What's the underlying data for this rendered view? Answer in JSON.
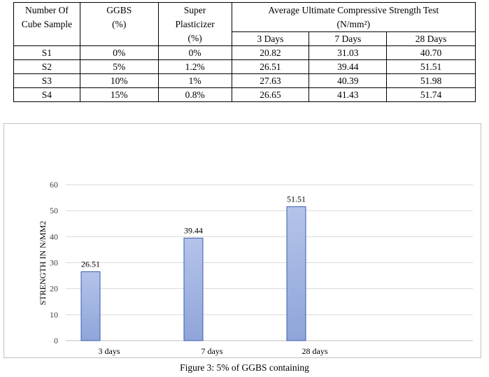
{
  "table": {
    "headers": {
      "col1": [
        "Number Of",
        "Cube Sample"
      ],
      "col2": [
        "GGBS",
        "(%)"
      ],
      "col3": [
        "Super",
        "Plasticizer",
        "(%)"
      ],
      "group_line1": "Average Ultimate Compressive Strength Test",
      "group_line2": "(N/mm²)",
      "days": [
        "3 Days",
        "7 Days",
        "28 Days"
      ]
    },
    "rows": [
      [
        "S1",
        "0%",
        "0%",
        "20.82",
        "31.03",
        "40.70"
      ],
      [
        "S2",
        "5%",
        "1.2%",
        "26.51",
        "39.44",
        "51.51"
      ],
      [
        "S3",
        "10%",
        "1%",
        "27.63",
        "40.39",
        "51.98"
      ],
      [
        "S4",
        "15%",
        "0.8%",
        "26.65",
        "41.43",
        "51.74"
      ]
    ]
  },
  "chart_data": {
    "type": "bar",
    "categories": [
      "3 days",
      "7 days",
      "28 days"
    ],
    "values": [
      26.51,
      39.44,
      51.51
    ],
    "data_labels": [
      "26.51",
      "39.44",
      "51.51"
    ],
    "ylabel": "STRENGTH IN N/MM2",
    "xlabel": "",
    "ylim": [
      0,
      60
    ],
    "yticks": [
      0,
      10,
      20,
      30,
      40,
      50,
      60
    ],
    "grid": true,
    "bar_color": "#8fa5d9",
    "bar_border": "#3a5fb0"
  },
  "caption": "Figure 3: 5% of GGBS containing"
}
